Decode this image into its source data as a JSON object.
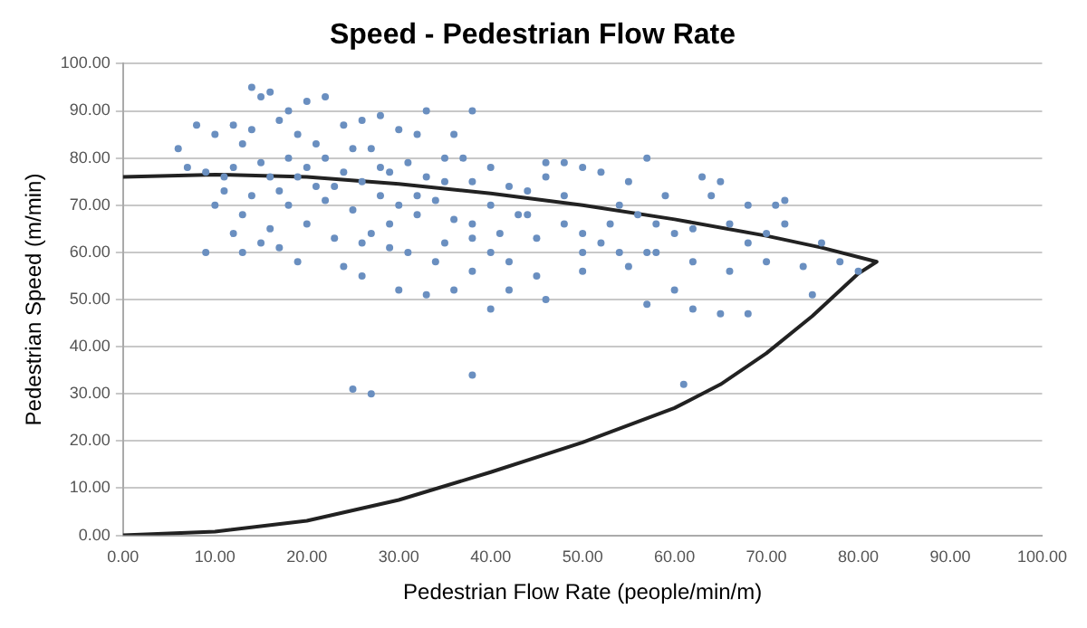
{
  "chart_data": {
    "type": "scatter",
    "title": "Speed - Pedestrian Flow Rate",
    "xlabel": "Pedestrian Flow Rate (people/min/m)",
    "ylabel": "Pedestrian Speed (m/min)",
    "xlim": [
      0,
      100
    ],
    "xticks": [
      {
        "value": 0,
        "label": "0.00"
      },
      {
        "value": 10,
        "label": "10.00"
      },
      {
        "value": 20,
        "label": "20.00"
      },
      {
        "value": 30,
        "label": "30.00"
      },
      {
        "value": 40,
        "label": "40.00"
      },
      {
        "value": 50,
        "label": "50.00"
      },
      {
        "value": 60,
        "label": "60.00"
      },
      {
        "value": 70,
        "label": "70.00"
      },
      {
        "value": 80,
        "label": "80.00"
      },
      {
        "value": 90,
        "label": "90.00"
      },
      {
        "value": 100,
        "label": "100.00"
      }
    ],
    "ylim": [
      0,
      100
    ],
    "yticks": [
      {
        "value": 0,
        "label": "0.00"
      },
      {
        "value": 10,
        "label": "10.00"
      },
      {
        "value": 20,
        "label": "20.00"
      },
      {
        "value": 30,
        "label": "30.00"
      },
      {
        "value": 40,
        "label": "40.00"
      },
      {
        "value": 50,
        "label": "50.00"
      },
      {
        "value": 60,
        "label": "60.00"
      },
      {
        "value": 70,
        "label": "70.00"
      },
      {
        "value": 80,
        "label": "80.00"
      },
      {
        "value": 90,
        "label": "90.00"
      },
      {
        "value": 100,
        "label": "100.00"
      }
    ],
    "grid": "y",
    "series": [
      {
        "type": "scatter",
        "color": "#6a8fc0",
        "marker": "circle",
        "x": [
          14,
          15,
          16,
          18,
          20,
          22,
          17,
          12,
          8,
          10,
          6,
          13,
          19,
          24,
          26,
          28,
          30,
          32,
          27,
          22,
          18,
          15,
          12,
          9,
          11,
          16,
          20,
          24,
          26,
          29,
          31,
          33,
          35,
          21,
          17,
          14,
          10,
          13,
          18,
          22,
          25,
          28,
          30,
          32,
          34,
          36,
          38,
          37,
          36,
          33,
          20,
          16,
          12,
          9,
          15,
          23,
          27,
          29,
          31,
          24,
          19,
          26,
          30,
          33,
          35,
          38,
          40,
          42,
          44,
          46,
          48,
          50,
          52,
          55,
          57,
          46,
          40,
          43,
          45,
          48,
          50,
          52,
          54,
          56,
          58,
          60,
          62,
          64,
          65,
          68,
          70,
          72,
          72,
          55,
          58,
          62,
          66,
          68,
          70,
          74,
          76,
          78,
          80,
          60,
          57,
          62,
          65,
          68,
          75,
          57,
          45,
          42,
          40,
          38,
          36,
          50,
          35,
          38,
          25,
          27,
          38,
          61,
          40,
          42,
          46,
          50,
          53,
          48,
          44,
          41,
          34,
          21,
          25,
          23,
          28,
          14,
          19,
          11,
          7,
          29,
          32,
          26,
          17,
          13,
          38,
          63,
          66,
          71,
          59,
          54
        ],
        "values": [
          95,
          93,
          94,
          90,
          92,
          93,
          88,
          87,
          87,
          85,
          82,
          83,
          85,
          87,
          88,
          89,
          86,
          85,
          82,
          80,
          80,
          79,
          78,
          77,
          76,
          76,
          78,
          77,
          75,
          77,
          79,
          76,
          75,
          74,
          73,
          72,
          70,
          68,
          70,
          71,
          69,
          72,
          70,
          68,
          71,
          67,
          75,
          80,
          85,
          90,
          66,
          65,
          64,
          60,
          62,
          63,
          64,
          66,
          60,
          57,
          58,
          55,
          52,
          51,
          62,
          66,
          70,
          74,
          73,
          76,
          79,
          78,
          77,
          75,
          80,
          79,
          78,
          68,
          63,
          66,
          64,
          62,
          70,
          68,
          66,
          64,
          65,
          72,
          75,
          70,
          64,
          66,
          71,
          57,
          60,
          58,
          56,
          62,
          58,
          57,
          62,
          58,
          56,
          52,
          49,
          48,
          47,
          47,
          51,
          60,
          55,
          58,
          60,
          56,
          52,
          56,
          80,
          90,
          31,
          30,
          34,
          32,
          48,
          52,
          50,
          60,
          66,
          72,
          68,
          64,
          58,
          83,
          82,
          74,
          78,
          86,
          76,
          73,
          78,
          61,
          72,
          62,
          61,
          60,
          63,
          76,
          66,
          70,
          72,
          60
        ]
      },
      {
        "type": "line",
        "color": "#222222",
        "marker": "none",
        "line_style": "solid",
        "x": [
          0,
          10,
          20,
          30,
          40,
          50,
          60,
          70,
          76,
          82,
          80,
          75,
          70,
          65,
          60,
          50,
          40,
          30,
          20,
          10,
          0
        ],
        "values": [
          76,
          76.5,
          76,
          74.5,
          72.5,
          70,
          67,
          63.5,
          61,
          58,
          55.5,
          46.5,
          38.6,
          32,
          27,
          19.7,
          13.4,
          7.5,
          3.1,
          0.8,
          0
        ]
      }
    ]
  }
}
